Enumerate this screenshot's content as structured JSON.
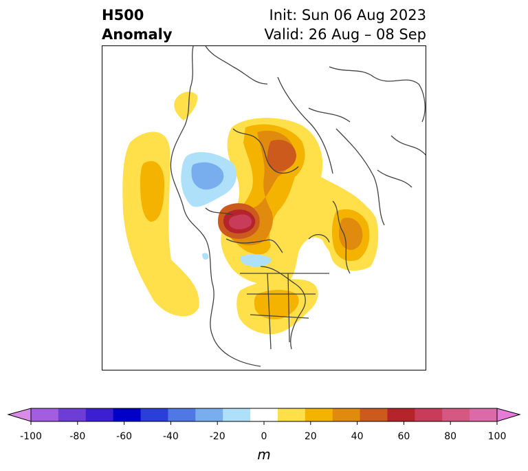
{
  "header": {
    "title_line1": "H500",
    "title_line2": "Anomaly",
    "init_text": "Init: Sun 06 Aug 2023",
    "valid_text": "Valid: 26 Aug – 08 Sep"
  },
  "colorbar": {
    "unit": "m",
    "tick_labels": [
      "-100",
      "-80",
      "-60",
      "-40",
      "-20",
      "0",
      "20",
      "40",
      "60",
      "80",
      "100"
    ],
    "colors": [
      "#d98be8",
      "#a35de0",
      "#6e3dd6",
      "#3c1fd0",
      "#0000c8",
      "#2a3fd8",
      "#4f78e4",
      "#78aeee",
      "#aee0fa",
      "#ffffff",
      "#ffe04a",
      "#f4b300",
      "#e08a0e",
      "#cc5a1c",
      "#b4242a",
      "#c83c5a",
      "#d45882",
      "#dc6aa8",
      "#e87ad8"
    ]
  },
  "map": {
    "projection": "north-polar",
    "variable": "500 hPa height anomaly",
    "colors": {
      "pos_10": "#ffe04a",
      "pos_20": "#f4b300",
      "pos_30": "#e08a0e",
      "pos_40": "#cc5a1c",
      "pos_50": "#b4242a",
      "pos_60": "#c83c5a",
      "neg_10": "#aee0fa",
      "neg_20": "#78aeee",
      "coast": "#404040"
    }
  }
}
